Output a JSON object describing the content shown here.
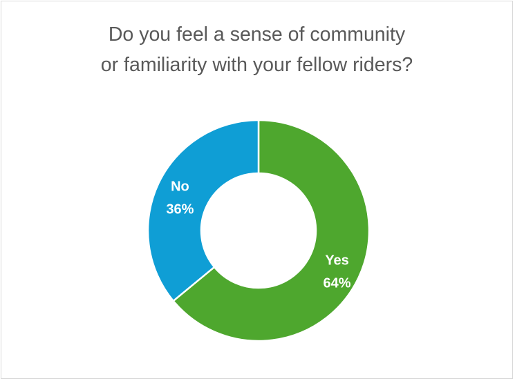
{
  "chart_data": {
    "type": "pie",
    "variant": "donut",
    "title": "Do you feel a sense of community\nor familiarity with your fellow riders?",
    "categories": [
      "Yes",
      "No"
    ],
    "values": [
      64,
      36
    ],
    "value_labels": [
      "64%",
      "36%"
    ],
    "colors": [
      "#4ea72e",
      "#0f9ed5"
    ],
    "legend": "none"
  }
}
